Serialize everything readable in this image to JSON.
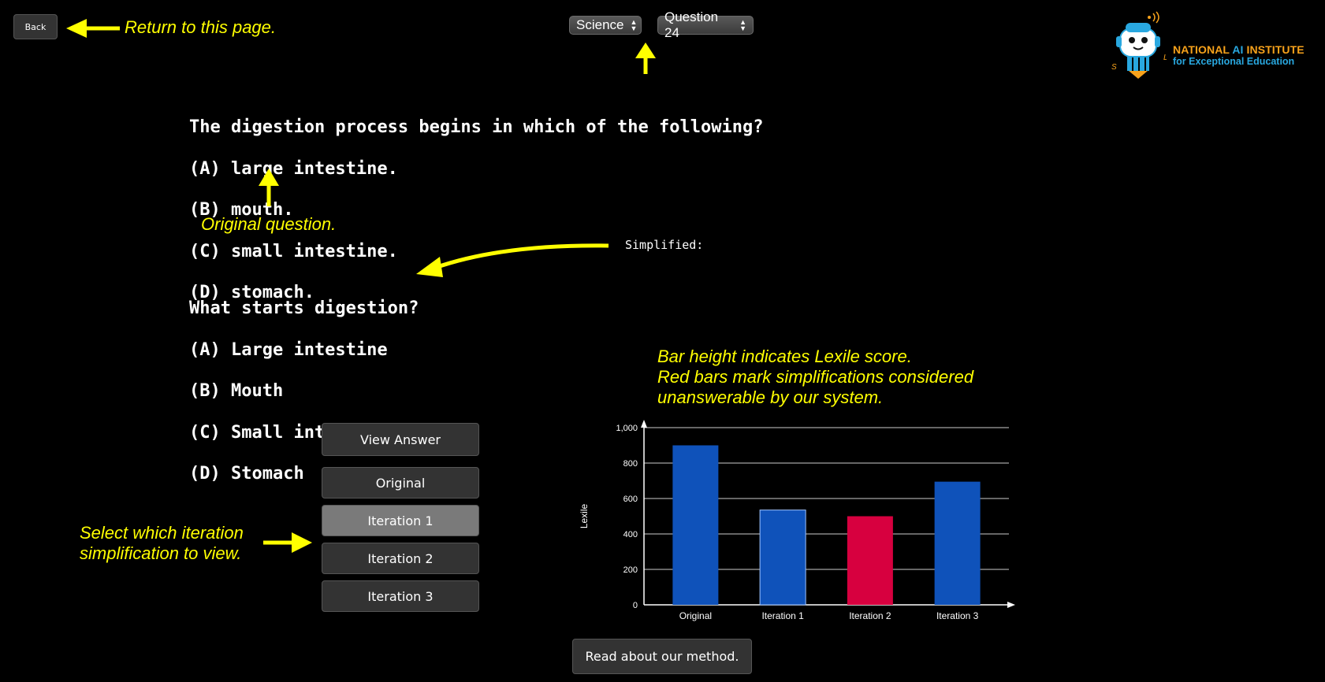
{
  "header": {
    "back_label": "Back",
    "back_note": "Return to this page.",
    "subject_select": "Science",
    "question_select": "Question 24"
  },
  "logo": {
    "title_part1": "NATIONAL ",
    "title_ai": "AI",
    "title_part2": " INSTITUTE",
    "subtitle": "for Exceptional Education",
    "letter_left": "S",
    "letter_right": "L",
    "icon": "robot-mascot-icon"
  },
  "original_question": {
    "stem": "The digestion process begins in which of the following?",
    "options": [
      "(A) large intestine.",
      "(B) mouth.",
      "(C) small intestine.",
      "(D) stomach."
    ],
    "note": "Original question."
  },
  "simplified": {
    "label": "Simplified:",
    "stem": "What starts digestion?",
    "options": [
      "(A) Large intestine",
      "(B) Mouth",
      "(C) Small intestine",
      "(D) Stomach"
    ]
  },
  "controls": {
    "view_answer": "View Answer",
    "iterations": [
      "Original",
      "Iteration 1",
      "Iteration 2",
      "Iteration 3"
    ],
    "active_index": 1,
    "select_note_line1": "Select which iteration",
    "select_note_line2": "simplification to view."
  },
  "chart_note": {
    "line1": "Bar height indicates Lexile score.",
    "line2": "Red bars mark simplifications considered",
    "line3": "unanswerable by our system."
  },
  "footer": {
    "method_label": "Read about our method."
  },
  "colors": {
    "accent": "#ffff00",
    "bar_blue": "#0f52ba",
    "bar_red": "#d7003f",
    "background": "#000000"
  },
  "chart_data": {
    "type": "bar",
    "categories": [
      "Original",
      "Iteration 1",
      "Iteration 2",
      "Iteration 3"
    ],
    "values": [
      900,
      535,
      500,
      695
    ],
    "unanswerable": [
      false,
      false,
      true,
      false
    ],
    "ylabel": "Lexile",
    "xlabel": "",
    "ylim": [
      0,
      1000
    ],
    "yticks": [
      0,
      200,
      400,
      600,
      800,
      1000
    ],
    "ytick_labels": [
      "0",
      "200",
      "400",
      "600",
      "800",
      "1,000"
    ],
    "grid": true
  }
}
